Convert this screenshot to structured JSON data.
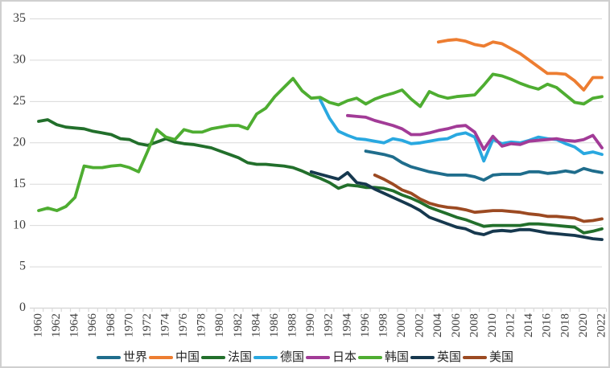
{
  "frame": {
    "background": "#FFFFFF",
    "border_color": "#CFCFCF"
  },
  "chart_data": {
    "type": "line",
    "title": "",
    "xlabel": "",
    "ylabel": "",
    "ylim": [
      0,
      35
    ],
    "xlim": [
      1959.5,
      2022.5
    ],
    "grid": "horizontal",
    "gridline_color": "#D9D9D9",
    "axis_line_color": "#D9D9D9",
    "axis_text_color": "#404040",
    "legend_position": "bottom",
    "y_ticks": [
      0,
      5,
      10,
      15,
      20,
      25,
      30,
      35
    ],
    "x_ticks": [
      1960,
      1962,
      1964,
      1966,
      1968,
      1970,
      1972,
      1974,
      1976,
      1978,
      1980,
      1982,
      1984,
      1986,
      1988,
      1990,
      1992,
      1994,
      1996,
      1998,
      2000,
      2002,
      2004,
      2006,
      2008,
      2010,
      2012,
      2014,
      2016,
      2018,
      2020,
      2022
    ],
    "series": [
      {
        "key": "world",
        "name": "世界",
        "color": "#1F6D8C",
        "points": [
          [
            1996,
            19.0
          ],
          [
            1997,
            18.8
          ],
          [
            1998,
            18.6
          ],
          [
            1999,
            18.3
          ],
          [
            2000,
            17.6
          ],
          [
            2001,
            17.1
          ],
          [
            2002,
            16.8
          ],
          [
            2003,
            16.5
          ],
          [
            2004,
            16.3
          ],
          [
            2005,
            16.1
          ],
          [
            2006,
            16.1
          ],
          [
            2007,
            16.1
          ],
          [
            2008,
            15.9
          ],
          [
            2009,
            15.5
          ],
          [
            2010,
            16.1
          ],
          [
            2011,
            16.2
          ],
          [
            2012,
            16.2
          ],
          [
            2013,
            16.2
          ],
          [
            2014,
            16.5
          ],
          [
            2015,
            16.5
          ],
          [
            2016,
            16.3
          ],
          [
            2017,
            16.4
          ],
          [
            2018,
            16.6
          ],
          [
            2019,
            16.4
          ],
          [
            2020,
            16.9
          ],
          [
            2021,
            16.6
          ],
          [
            2022,
            16.4
          ]
        ]
      },
      {
        "key": "china",
        "name": "中国",
        "color": "#ED7D31",
        "points": [
          [
            2004,
            32.2
          ],
          [
            2005,
            32.4
          ],
          [
            2006,
            32.5
          ],
          [
            2007,
            32.3
          ],
          [
            2008,
            31.9
          ],
          [
            2009,
            31.7
          ],
          [
            2010,
            32.2
          ],
          [
            2011,
            32.0
          ],
          [
            2012,
            31.4
          ],
          [
            2013,
            30.8
          ],
          [
            2014,
            30.0
          ],
          [
            2015,
            29.2
          ],
          [
            2016,
            28.4
          ],
          [
            2017,
            28.4
          ],
          [
            2018,
            28.3
          ],
          [
            2019,
            27.5
          ],
          [
            2020,
            26.4
          ],
          [
            2021,
            27.9
          ],
          [
            2022,
            27.9
          ]
        ]
      },
      {
        "key": "france",
        "name": "法国",
        "color": "#226F2B",
        "points": [
          [
            1960,
            22.6
          ],
          [
            1961,
            22.8
          ],
          [
            1962,
            22.2
          ],
          [
            1963,
            21.9
          ],
          [
            1964,
            21.8
          ],
          [
            1965,
            21.7
          ],
          [
            1966,
            21.4
          ],
          [
            1967,
            21.2
          ],
          [
            1968,
            21.0
          ],
          [
            1969,
            20.5
          ],
          [
            1970,
            20.4
          ],
          [
            1971,
            19.9
          ],
          [
            1972,
            19.7
          ],
          [
            1973,
            20.1
          ],
          [
            1974,
            20.5
          ],
          [
            1975,
            20.1
          ],
          [
            1976,
            19.9
          ],
          [
            1977,
            19.8
          ],
          [
            1978,
            19.6
          ],
          [
            1979,
            19.4
          ],
          [
            1980,
            19.0
          ],
          [
            1981,
            18.6
          ],
          [
            1982,
            18.2
          ],
          [
            1983,
            17.6
          ],
          [
            1984,
            17.4
          ],
          [
            1985,
            17.4
          ],
          [
            1986,
            17.3
          ],
          [
            1987,
            17.2
          ],
          [
            1988,
            17.0
          ],
          [
            1989,
            16.6
          ],
          [
            1990,
            16.1
          ],
          [
            1991,
            15.7
          ],
          [
            1992,
            15.2
          ],
          [
            1993,
            14.5
          ],
          [
            1994,
            14.9
          ],
          [
            1995,
            14.8
          ],
          [
            1996,
            14.6
          ],
          [
            1997,
            14.6
          ],
          [
            1998,
            14.5
          ],
          [
            1999,
            14.2
          ],
          [
            2000,
            13.7
          ],
          [
            2001,
            13.3
          ],
          [
            2002,
            12.8
          ],
          [
            2003,
            12.2
          ],
          [
            2004,
            11.8
          ],
          [
            2005,
            11.4
          ],
          [
            2006,
            11.0
          ],
          [
            2007,
            10.7
          ],
          [
            2008,
            10.3
          ],
          [
            2009,
            9.9
          ],
          [
            2010,
            10.0
          ],
          [
            2011,
            10.0
          ],
          [
            2012,
            10.0
          ],
          [
            2013,
            10.0
          ],
          [
            2014,
            10.2
          ],
          [
            2015,
            10.2
          ],
          [
            2016,
            10.1
          ],
          [
            2017,
            10.0
          ],
          [
            2018,
            9.9
          ],
          [
            2019,
            9.8
          ],
          [
            2020,
            9.1
          ],
          [
            2021,
            9.3
          ],
          [
            2022,
            9.6
          ]
        ]
      },
      {
        "key": "germany",
        "name": "德国",
        "color": "#29A8E0",
        "points": [
          [
            1991,
            25.2
          ],
          [
            1992,
            23.0
          ],
          [
            1993,
            21.4
          ],
          [
            1994,
            20.9
          ],
          [
            1995,
            20.5
          ],
          [
            1996,
            20.4
          ],
          [
            1997,
            20.2
          ],
          [
            1998,
            20.0
          ],
          [
            1999,
            20.5
          ],
          [
            2000,
            20.3
          ],
          [
            2001,
            19.9
          ],
          [
            2002,
            20.0
          ],
          [
            2003,
            20.2
          ],
          [
            2004,
            20.4
          ],
          [
            2005,
            20.5
          ],
          [
            2006,
            21.0
          ],
          [
            2007,
            21.2
          ],
          [
            2008,
            20.7
          ],
          [
            2009,
            17.8
          ],
          [
            2010,
            20.4
          ],
          [
            2011,
            19.9
          ],
          [
            2012,
            20.1
          ],
          [
            2013,
            20.0
          ],
          [
            2014,
            20.3
          ],
          [
            2015,
            20.7
          ],
          [
            2016,
            20.5
          ],
          [
            2017,
            20.4
          ],
          [
            2018,
            19.9
          ],
          [
            2019,
            19.5
          ],
          [
            2020,
            18.7
          ],
          [
            2021,
            18.9
          ],
          [
            2022,
            18.6
          ]
        ]
      },
      {
        "key": "japan",
        "name": "日本",
        "color": "#A23B97",
        "points": [
          [
            1994,
            23.3
          ],
          [
            1995,
            23.2
          ],
          [
            1996,
            23.1
          ],
          [
            1997,
            22.7
          ],
          [
            1998,
            22.4
          ],
          [
            1999,
            22.1
          ],
          [
            2000,
            21.7
          ],
          [
            2001,
            21.0
          ],
          [
            2002,
            21.0
          ],
          [
            2003,
            21.2
          ],
          [
            2004,
            21.5
          ],
          [
            2005,
            21.7
          ],
          [
            2006,
            22.0
          ],
          [
            2007,
            22.1
          ],
          [
            2008,
            21.3
          ],
          [
            2009,
            19.2
          ],
          [
            2010,
            20.8
          ],
          [
            2011,
            19.6
          ],
          [
            2012,
            19.9
          ],
          [
            2013,
            19.8
          ],
          [
            2014,
            20.2
          ],
          [
            2015,
            20.3
          ],
          [
            2016,
            20.4
          ],
          [
            2017,
            20.5
          ],
          [
            2018,
            20.3
          ],
          [
            2019,
            20.2
          ],
          [
            2020,
            20.4
          ],
          [
            2021,
            20.9
          ],
          [
            2022,
            19.4
          ]
        ]
      },
      {
        "key": "korea",
        "name": "韩国",
        "color": "#4EAD31",
        "points": [
          [
            1960,
            11.8
          ],
          [
            1961,
            12.1
          ],
          [
            1962,
            11.8
          ],
          [
            1963,
            12.3
          ],
          [
            1964,
            13.4
          ],
          [
            1965,
            17.2
          ],
          [
            1966,
            17.0
          ],
          [
            1967,
            17.0
          ],
          [
            1968,
            17.2
          ],
          [
            1969,
            17.3
          ],
          [
            1970,
            17.0
          ],
          [
            1971,
            16.5
          ],
          [
            1972,
            19.0
          ],
          [
            1973,
            21.6
          ],
          [
            1974,
            20.7
          ],
          [
            1975,
            20.4
          ],
          [
            1976,
            21.6
          ],
          [
            1977,
            21.3
          ],
          [
            1978,
            21.3
          ],
          [
            1979,
            21.7
          ],
          [
            1980,
            21.9
          ],
          [
            1981,
            22.1
          ],
          [
            1982,
            22.1
          ],
          [
            1983,
            21.7
          ],
          [
            1984,
            23.5
          ],
          [
            1985,
            24.2
          ],
          [
            1986,
            25.6
          ],
          [
            1987,
            26.7
          ],
          [
            1988,
            27.8
          ],
          [
            1989,
            26.3
          ],
          [
            1990,
            25.4
          ],
          [
            1991,
            25.5
          ],
          [
            1992,
            24.9
          ],
          [
            1993,
            24.6
          ],
          [
            1994,
            25.1
          ],
          [
            1995,
            25.4
          ],
          [
            1996,
            24.7
          ],
          [
            1997,
            25.3
          ],
          [
            1998,
            25.7
          ],
          [
            1999,
            26.0
          ],
          [
            2000,
            26.4
          ],
          [
            2001,
            25.3
          ],
          [
            2002,
            24.4
          ],
          [
            2003,
            26.2
          ],
          [
            2004,
            25.7
          ],
          [
            2005,
            25.4
          ],
          [
            2006,
            25.6
          ],
          [
            2007,
            25.7
          ],
          [
            2008,
            25.8
          ],
          [
            2009,
            27.0
          ],
          [
            2010,
            28.3
          ],
          [
            2011,
            28.1
          ],
          [
            2012,
            27.7
          ],
          [
            2013,
            27.2
          ],
          [
            2014,
            26.8
          ],
          [
            2015,
            26.5
          ],
          [
            2016,
            27.1
          ],
          [
            2017,
            26.7
          ],
          [
            2018,
            25.8
          ],
          [
            2019,
            24.9
          ],
          [
            2020,
            24.7
          ],
          [
            2021,
            25.4
          ],
          [
            2022,
            25.6
          ]
        ]
      },
      {
        "key": "uk",
        "name": "英国",
        "color": "#16384E",
        "points": [
          [
            1990,
            16.5
          ],
          [
            1991,
            16.2
          ],
          [
            1992,
            15.9
          ],
          [
            1993,
            15.6
          ],
          [
            1994,
            16.4
          ],
          [
            1995,
            15.2
          ],
          [
            1996,
            15.0
          ],
          [
            1997,
            14.4
          ],
          [
            1998,
            13.9
          ],
          [
            1999,
            13.4
          ],
          [
            2000,
            12.9
          ],
          [
            2001,
            12.4
          ],
          [
            2002,
            11.8
          ],
          [
            2003,
            11.0
          ],
          [
            2004,
            10.6
          ],
          [
            2005,
            10.2
          ],
          [
            2006,
            9.8
          ],
          [
            2007,
            9.6
          ],
          [
            2008,
            9.1
          ],
          [
            2009,
            8.9
          ],
          [
            2010,
            9.3
          ],
          [
            2011,
            9.4
          ],
          [
            2012,
            9.3
          ],
          [
            2013,
            9.5
          ],
          [
            2014,
            9.5
          ],
          [
            2015,
            9.3
          ],
          [
            2016,
            9.1
          ],
          [
            2017,
            9.0
          ],
          [
            2018,
            8.9
          ],
          [
            2019,
            8.8
          ],
          [
            2020,
            8.6
          ],
          [
            2021,
            8.4
          ],
          [
            2022,
            8.3
          ]
        ]
      },
      {
        "key": "usa",
        "name": "美国",
        "color": "#9C4A22",
        "points": [
          [
            1997,
            16.1
          ],
          [
            1998,
            15.6
          ],
          [
            1999,
            15.0
          ],
          [
            2000,
            14.3
          ],
          [
            2001,
            13.9
          ],
          [
            2002,
            13.2
          ],
          [
            2003,
            12.7
          ],
          [
            2004,
            12.4
          ],
          [
            2005,
            12.2
          ],
          [
            2006,
            12.1
          ],
          [
            2007,
            11.9
          ],
          [
            2008,
            11.6
          ],
          [
            2009,
            11.7
          ],
          [
            2010,
            11.8
          ],
          [
            2011,
            11.8
          ],
          [
            2012,
            11.7
          ],
          [
            2013,
            11.6
          ],
          [
            2014,
            11.4
          ],
          [
            2015,
            11.3
          ],
          [
            2016,
            11.1
          ],
          [
            2017,
            11.1
          ],
          [
            2018,
            11.0
          ],
          [
            2019,
            10.9
          ],
          [
            2020,
            10.5
          ],
          [
            2021,
            10.6
          ],
          [
            2022,
            10.8
          ]
        ]
      }
    ]
  }
}
